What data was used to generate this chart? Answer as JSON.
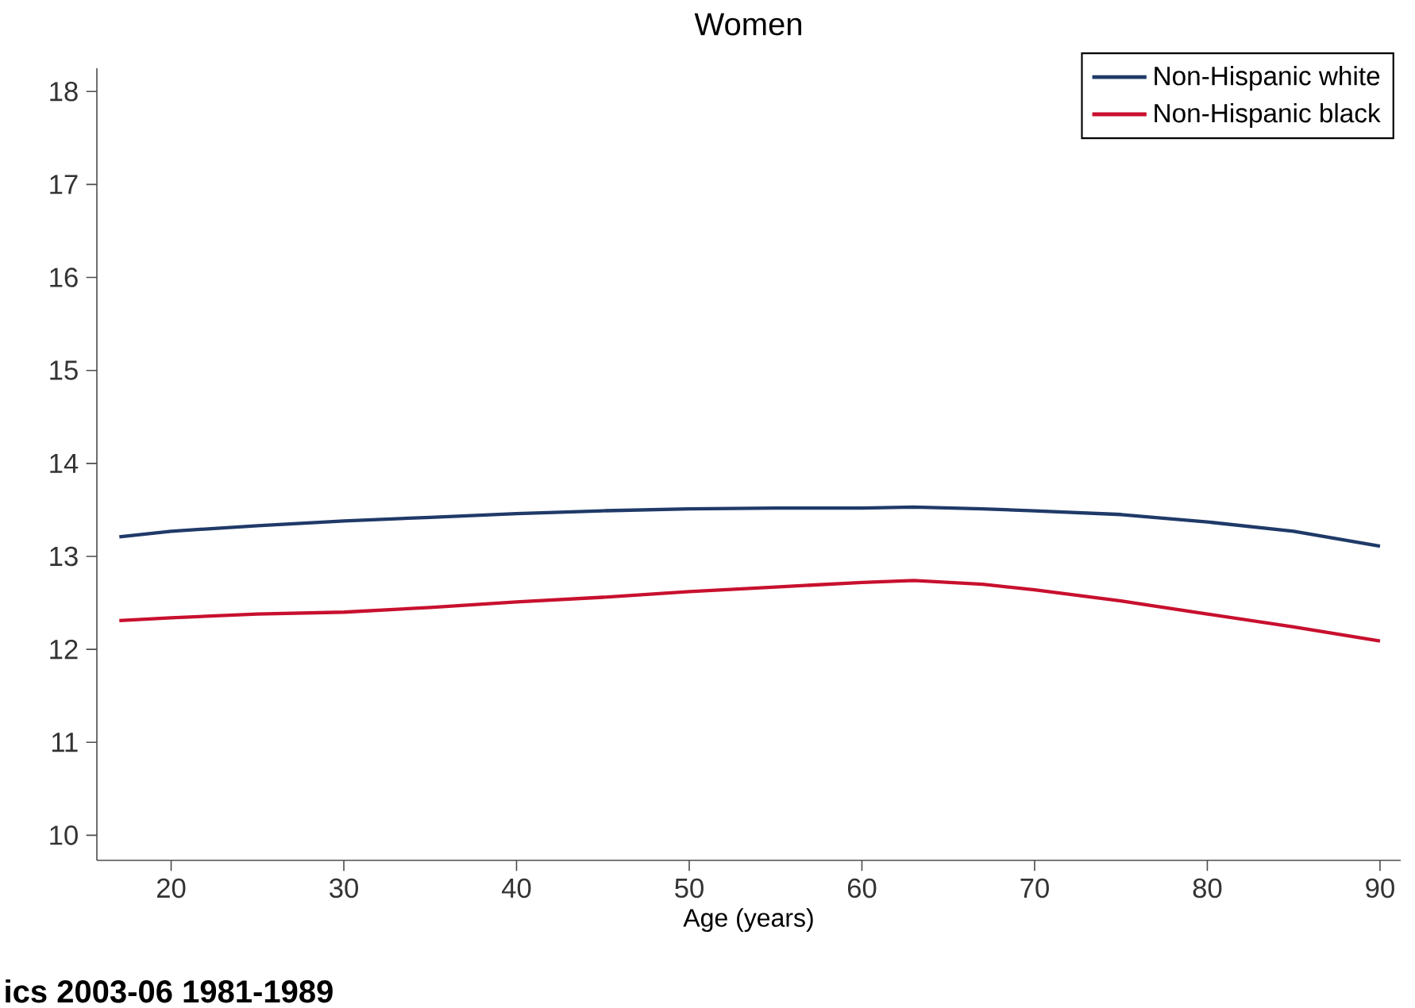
{
  "chart_data": {
    "type": "line",
    "title": "Women",
    "xlabel": "Age (years)",
    "xlim": [
      15.7,
      91.2
    ],
    "ylim": [
      9.73,
      18.25
    ],
    "xticks": [
      20,
      30,
      40,
      50,
      60,
      70,
      80,
      90
    ],
    "yticks": [
      10,
      11,
      12,
      13,
      14,
      15,
      16,
      17,
      18
    ],
    "grid": false,
    "legend": "top right",
    "marker": "none",
    "line_style": "solid",
    "annotations": [
      "ics 2003-06 1981-1989"
    ],
    "series": [
      {
        "name": "Non-Hispanic white",
        "color": "#1f3a68",
        "x": [
          17,
          20,
          25,
          30,
          35,
          40,
          45,
          50,
          55,
          60,
          63,
          67,
          70,
          75,
          80,
          85,
          90
        ],
        "values": [
          13.21,
          13.27,
          13.33,
          13.38,
          13.42,
          13.46,
          13.49,
          13.51,
          13.52,
          13.52,
          13.53,
          13.51,
          13.49,
          13.45,
          13.37,
          13.27,
          13.11
        ]
      },
      {
        "name": "Non-Hispanic black",
        "color": "#c8102e",
        "x": [
          17,
          20,
          25,
          30,
          35,
          40,
          45,
          50,
          55,
          60,
          63,
          67,
          70,
          75,
          80,
          85,
          90
        ],
        "values": [
          12.31,
          12.34,
          12.38,
          12.4,
          12.45,
          12.51,
          12.56,
          12.62,
          12.67,
          12.72,
          12.74,
          12.7,
          12.64,
          12.52,
          12.38,
          12.24,
          12.09
        ]
      }
    ]
  }
}
